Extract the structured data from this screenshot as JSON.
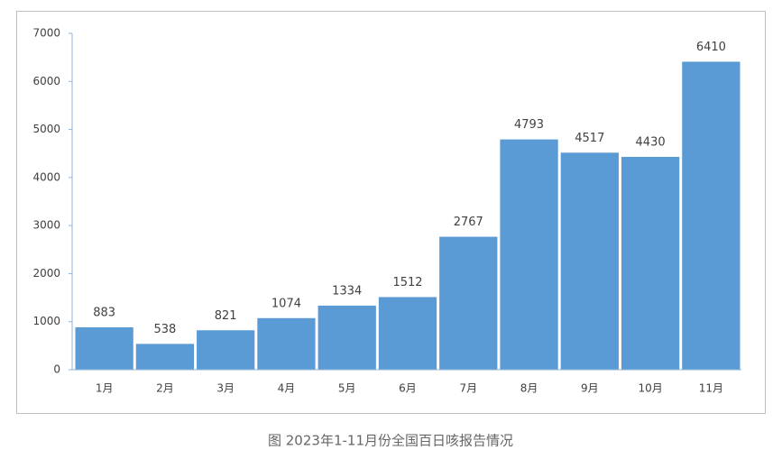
{
  "chart_data": {
    "type": "bar",
    "title": "图 2023年1-11月份全国百日咳报告情况",
    "categories": [
      "1月",
      "2月",
      "3月",
      "4月",
      "5月",
      "6月",
      "7月",
      "8月",
      "9月",
      "10月",
      "11月"
    ],
    "values": [
      883,
      538,
      821,
      1074,
      1334,
      1512,
      2767,
      4793,
      4517,
      4430,
      6410
    ],
    "color": "#5b9bd5",
    "ylim": [
      0,
      7000
    ],
    "yticks": [
      0,
      1000,
      2000,
      3000,
      4000,
      5000,
      6000,
      7000
    ],
    "grid": false
  }
}
